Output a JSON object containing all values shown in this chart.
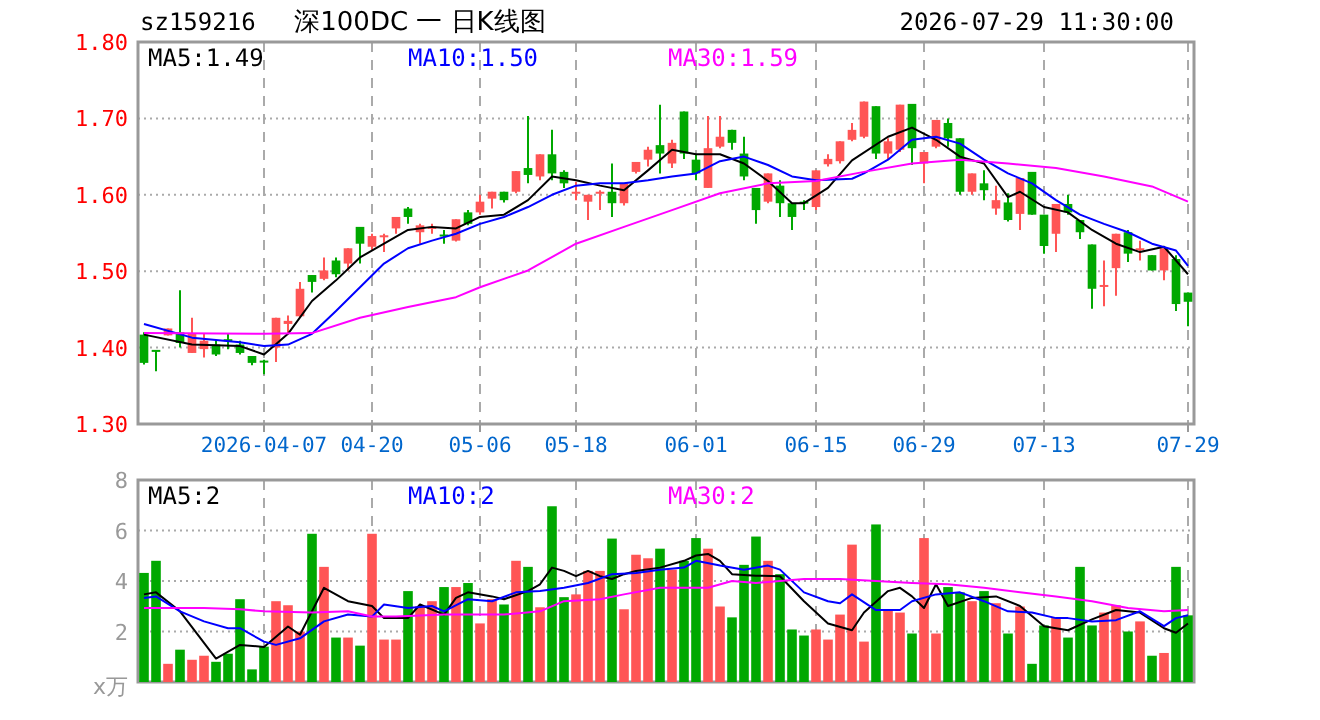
{
  "chart_data": [
    {
      "type": "candlestick",
      "title": "深100DC 一 日K线图",
      "annotations": [
        "sz159216",
        "2026-07-29 11:30:00"
      ],
      "categories": [
        null,
        null,
        null,
        null,
        null,
        null,
        null,
        null,
        null,
        null,
        "2026-04-07",
        null,
        null,
        null,
        null,
        null,
        null,
        null,
        null,
        "04-20",
        null,
        null,
        null,
        null,
        null,
        null,
        null,
        null,
        "05-06",
        null,
        null,
        null,
        null,
        null,
        null,
        null,
        "05-18",
        null,
        null,
        null,
        null,
        null,
        null,
        null,
        null,
        null,
        "06-01",
        null,
        null,
        null,
        null,
        null,
        null,
        null,
        null,
        null,
        "06-15",
        null,
        null,
        null,
        null,
        null,
        null,
        null,
        null,
        "06-29",
        null,
        null,
        null,
        null,
        null,
        null,
        null,
        null,
        null,
        "07-13",
        null,
        null,
        null,
        null,
        null,
        null,
        null,
        null,
        null,
        null,
        null,
        "07-29"
      ],
      "ohlc": [
        [
          1.417,
          1.42,
          1.378,
          1.38
        ],
        [
          1.397,
          1.397,
          1.369,
          1.396
        ],
        [
          1.416,
          1.425,
          1.416,
          1.425
        ],
        [
          1.42,
          1.475,
          1.4,
          1.406
        ],
        [
          1.393,
          1.439,
          1.393,
          1.418
        ],
        [
          1.398,
          1.418,
          1.387,
          1.409
        ],
        [
          1.404,
          1.41,
          1.389,
          1.391
        ],
        [
          1.411,
          1.418,
          1.398,
          1.41
        ],
        [
          1.404,
          1.409,
          1.391,
          1.393
        ],
        [
          1.389,
          1.389,
          1.377,
          1.38
        ],
        [
          1.383,
          1.384,
          1.365,
          1.382
        ],
        [
          1.4,
          1.439,
          1.381,
          1.439
        ],
        [
          1.431,
          1.442,
          1.418,
          1.435
        ],
        [
          1.441,
          1.486,
          1.44,
          1.477
        ],
        [
          1.495,
          1.495,
          1.472,
          1.486
        ],
        [
          1.49,
          1.518,
          1.488,
          1.501
        ],
        [
          1.514,
          1.518,
          1.492,
          1.496
        ],
        [
          1.51,
          1.53,
          1.501,
          1.53
        ],
        [
          1.558,
          1.558,
          1.51,
          1.536
        ],
        [
          1.532,
          1.549,
          1.527,
          1.546
        ],
        [
          1.546,
          1.549,
          1.525,
          1.547
        ],
        [
          1.556,
          1.571,
          1.549,
          1.571
        ],
        [
          1.582,
          1.584,
          1.562,
          1.571
        ],
        [
          1.551,
          1.562,
          1.536,
          1.56
        ],
        [
          1.556,
          1.562,
          1.549,
          1.558
        ],
        [
          1.548,
          1.554,
          1.536,
          1.547
        ],
        [
          1.54,
          1.568,
          1.539,
          1.568
        ],
        [
          1.577,
          1.58,
          1.56,
          1.562
        ],
        [
          1.577,
          1.6,
          1.574,
          1.591
        ],
        [
          1.595,
          1.604,
          1.582,
          1.604
        ],
        [
          1.604,
          1.604,
          1.59,
          1.593
        ],
        [
          1.604,
          1.631,
          1.602,
          1.631
        ],
        [
          1.635,
          1.703,
          1.615,
          1.626
        ],
        [
          1.624,
          1.653,
          1.619,
          1.653
        ],
        [
          1.653,
          1.685,
          1.619,
          1.628
        ],
        [
          1.63,
          1.632,
          1.609,
          1.615
        ],
        [
          1.602,
          1.617,
          1.593,
          1.604
        ],
        [
          1.591,
          1.6,
          1.567,
          1.6
        ],
        [
          1.602,
          1.606,
          1.58,
          1.604
        ],
        [
          1.604,
          1.641,
          1.571,
          1.589
        ],
        [
          1.589,
          1.615,
          1.586,
          1.615
        ],
        [
          1.63,
          1.643,
          1.628,
          1.643
        ],
        [
          1.646,
          1.663,
          1.637,
          1.659
        ],
        [
          1.665,
          1.718,
          1.628,
          1.654
        ],
        [
          1.641,
          1.672,
          1.635,
          1.668
        ],
        [
          1.709,
          1.709,
          1.647,
          1.654
        ],
        [
          1.646,
          1.653,
          1.619,
          1.628
        ],
        [
          1.609,
          1.703,
          1.609,
          1.661
        ],
        [
          1.663,
          1.703,
          1.661,
          1.676
        ],
        [
          1.685,
          1.685,
          1.659,
          1.668
        ],
        [
          1.654,
          1.676,
          1.619,
          1.624
        ],
        [
          1.609,
          1.609,
          1.562,
          1.58
        ],
        [
          1.591,
          1.628,
          1.589,
          1.628
        ],
        [
          1.612,
          1.619,
          1.571,
          1.589
        ],
        [
          1.589,
          1.589,
          1.554,
          1.571
        ],
        [
          1.591,
          1.593,
          1.58,
          1.59
        ],
        [
          1.584,
          1.632,
          1.58,
          1.632
        ],
        [
          1.64,
          1.653,
          1.637,
          1.647
        ],
        [
          1.644,
          1.67,
          1.641,
          1.67
        ],
        [
          1.672,
          1.694,
          1.67,
          1.685
        ],
        [
          1.676,
          1.722,
          1.674,
          1.722
        ],
        [
          1.716,
          1.716,
          1.647,
          1.654
        ],
        [
          1.654,
          1.674,
          1.647,
          1.67
        ],
        [
          1.659,
          1.718,
          1.656,
          1.718
        ],
        [
          1.719,
          1.719,
          1.639,
          1.661
        ],
        [
          1.641,
          1.656,
          1.615,
          1.656
        ],
        [
          1.663,
          1.698,
          1.661,
          1.698
        ],
        [
          1.694,
          1.7,
          1.663,
          1.674
        ],
        [
          1.674,
          1.674,
          1.6,
          1.604
        ],
        [
          1.604,
          1.628,
          1.6,
          1.628
        ],
        [
          1.615,
          1.632,
          1.593,
          1.606
        ],
        [
          1.582,
          1.612,
          1.574,
          1.593
        ],
        [
          1.59,
          1.602,
          1.565,
          1.567
        ],
        [
          1.575,
          1.622,
          1.554,
          1.622
        ],
        [
          1.63,
          1.63,
          1.574,
          1.574
        ],
        [
          1.574,
          1.574,
          1.523,
          1.533
        ],
        [
          1.549,
          1.588,
          1.525,
          1.588
        ],
        [
          1.588,
          1.6,
          1.574,
          1.577
        ],
        [
          1.567,
          1.567,
          1.542,
          1.551
        ],
        [
          1.535,
          1.535,
          1.451,
          1.477
        ],
        [
          1.481,
          1.514,
          1.454,
          1.482
        ],
        [
          1.504,
          1.549,
          1.468,
          1.549
        ],
        [
          1.551,
          1.554,
          1.512,
          1.523
        ],
        [
          1.528,
          1.54,
          1.514,
          1.53
        ],
        [
          1.521,
          1.521,
          1.501,
          1.501
        ],
        [
          1.501,
          1.532,
          1.488,
          1.53
        ],
        [
          1.516,
          1.521,
          1.448,
          1.457
        ],
        [
          1.472,
          1.472,
          1.428,
          1.46
        ]
      ],
      "colors": [
        "#00a800",
        "#00a800",
        "#ff5555",
        "#00a800",
        "#ff5555",
        "#ff5555",
        "#00a800",
        "#00a800",
        "#00a800",
        "#00a800",
        "#00a800",
        "#ff5555",
        "#ff5555",
        "#ff5555",
        "#00a800",
        "#ff5555",
        "#00a800",
        "#ff5555",
        "#00a800",
        "#ff5555",
        "#ff5555",
        "#ff5555",
        "#00a800",
        "#ff5555",
        "#ff5555",
        "#00a800",
        "#ff5555",
        "#00a800",
        "#ff5555",
        "#ff5555",
        "#00a800",
        "#ff5555",
        "#00a800",
        "#ff5555",
        "#00a800",
        "#00a800",
        "#ff5555",
        "#ff5555",
        "#ff5555",
        "#00a800",
        "#ff5555",
        "#ff5555",
        "#ff5555",
        "#00a800",
        "#ff5555",
        "#00a800",
        "#00a800",
        "#ff5555",
        "#ff5555",
        "#00a800",
        "#00a800",
        "#00a800",
        "#ff5555",
        "#00a800",
        "#00a800",
        "#00a800",
        "#ff5555",
        "#ff5555",
        "#ff5555",
        "#ff5555",
        "#ff5555",
        "#00a800",
        "#ff5555",
        "#ff5555",
        "#00a800",
        "#ff5555",
        "#ff5555",
        "#00a800",
        "#00a800",
        "#ff5555",
        "#00a800",
        "#ff5555",
        "#00a800",
        "#ff5555",
        "#00a800",
        "#00a800",
        "#ff5555",
        "#00a800",
        "#00a800",
        "#00a800",
        "#ff5555",
        "#ff5555",
        "#00a800",
        "#ff5555",
        "#00a800",
        "#ff5555",
        "#00a800",
        "#00a800"
      ],
      "series": [
        {
          "type": "line",
          "name": "MA5:1.49",
          "color": "#000000",
          "values": [
            1.417,
            null,
            null,
            null,
            1.404,
            null,
            null,
            null,
            1.402,
            null,
            1.391,
            null,
            1.418,
            null,
            1.461,
            null,
            1.488,
            null,
            1.518,
            null,
            1.536,
            null,
            1.554,
            null,
            1.558,
            null,
            1.556,
            null,
            1.571,
            null,
            1.574,
            null,
            1.593,
            null,
            1.624,
            null,
            1.619,
            null,
            1.612,
            null,
            1.606,
            null,
            1.632,
            null,
            1.659,
            null,
            1.653,
            null,
            1.653,
            null,
            1.641,
            null,
            1.618,
            null,
            1.589,
            1.589,
            null,
            1.609,
            null,
            1.645,
            null,
            null,
            1.676,
            null,
            1.688,
            null,
            1.672,
            null,
            1.65,
            null,
            1.641,
            null,
            1.597,
            1.604,
            null,
            1.584,
            null,
            1.577,
            null,
            1.554,
            null,
            1.536,
            null,
            1.525,
            null,
            1.532,
            null,
            1.496
          ]
        },
        {
          "type": "line",
          "name": "MA10:1.50",
          "color": "#0000ff",
          "values": [
            1.431,
            null,
            null,
            null,
            1.413,
            null,
            null,
            null,
            1.407,
            null,
            1.402,
            null,
            1.404,
            null,
            1.418,
            null,
            1.448,
            null,
            1.479,
            null,
            1.51,
            null,
            1.53,
            null,
            1.54,
            null,
            1.549,
            null,
            1.562,
            null,
            1.571,
            null,
            1.584,
            null,
            1.6,
            null,
            1.612,
            null,
            1.615,
            null,
            1.615,
            null,
            1.619,
            null,
            1.624,
            null,
            1.628,
            null,
            1.644,
            null,
            1.65,
            null,
            1.639,
            null,
            1.624,
            null,
            1.619,
            null,
            null,
            1.621,
            1.628,
            null,
            1.646,
            null,
            1.672,
            null,
            1.676,
            null,
            1.667,
            null,
            1.646,
            null,
            1.628,
            null,
            1.615,
            null,
            1.593,
            null,
            1.574,
            null,
            1.562,
            null,
            1.551,
            null,
            1.536,
            null,
            1.527,
            1.507
          ]
        },
        {
          "type": "line",
          "name": "MA30:1.59",
          "color": "#ff00ff",
          "values": [
            1.419,
            null,
            null,
            null,
            null,
            null,
            null,
            null,
            null,
            null,
            1.418,
            null,
            null,
            null,
            1.419,
            null,
            null,
            null,
            1.439,
            null,
            null,
            null,
            1.453,
            null,
            null,
            null,
            1.466,
            null,
            1.479,
            null,
            null,
            null,
            1.501,
            null,
            null,
            null,
            1.536,
            null,
            null,
            null,
            1.558,
            null,
            null,
            null,
            1.58,
            null,
            null,
            null,
            1.602,
            null,
            null,
            null,
            1.615,
            null,
            null,
            null,
            1.618,
            null,
            null,
            null,
            1.63,
            null,
            null,
            null,
            1.641,
            null,
            null,
            null,
            1.646,
            null,
            null,
            null,
            1.641,
            null,
            null,
            null,
            1.635,
            null,
            null,
            null,
            1.624,
            null,
            null,
            null,
            1.611,
            null,
            null,
            1.591
          ]
        }
      ],
      "ylim": [
        1.3,
        1.8
      ],
      "yticks": [
        {
          "value": 1.3,
          "label": "1.30"
        },
        {
          "value": 1.4,
          "label": "1.40"
        },
        {
          "value": 1.5,
          "label": "1.50"
        },
        {
          "value": 1.6,
          "label": "1.60"
        },
        {
          "value": 1.7,
          "label": "1.70"
        },
        {
          "value": 1.8,
          "label": "1.80"
        }
      ],
      "grid": true,
      "legend": "top left"
    },
    {
      "type": "bar",
      "ylabel": "x万",
      "categories": [
        null,
        null,
        null,
        null,
        null,
        null,
        null,
        null,
        null,
        null,
        null,
        null,
        null,
        null,
        null,
        null,
        null,
        null,
        null,
        null,
        null,
        null,
        null,
        null,
        null,
        null,
        null,
        null,
        null,
        null,
        null,
        null,
        null,
        null,
        null,
        null,
        null,
        null,
        null,
        null,
        null,
        null,
        null,
        null,
        null,
        null,
        null,
        null,
        null,
        null,
        null,
        null,
        null,
        null,
        null,
        null,
        null,
        null,
        null,
        null,
        null,
        null,
        null,
        null,
        null,
        null,
        null,
        null,
        null,
        null,
        null,
        null,
        null,
        null,
        null,
        null,
        null,
        null,
        null,
        null,
        null,
        null,
        null,
        null,
        null,
        null,
        null,
        null
      ],
      "values": [
        4.32,
        4.8,
        0.72,
        1.28,
        0.88,
        1.04,
        0.8,
        1.12,
        3.28,
        0.5,
        1.4,
        3.2,
        3.04,
        2.0,
        5.87,
        4.56,
        1.76,
        1.76,
        1.44,
        5.87,
        1.68,
        1.68,
        3.6,
        3.0,
        3.2,
        3.76,
        3.76,
        3.92,
        2.32,
        3.28,
        3.07,
        4.8,
        4.56,
        2.96,
        6.96,
        3.36,
        3.47,
        4.4,
        4.4,
        5.68,
        2.88,
        5.04,
        4.9,
        5.28,
        4.45,
        4.8,
        5.7,
        5.28,
        2.99,
        2.56,
        4.64,
        5.76,
        4.8,
        4.27,
        2.08,
        1.84,
        2.08,
        1.68,
        2.67,
        5.44,
        1.6,
        6.24,
        2.88,
        2.75,
        1.92,
        5.7,
        1.92,
        3.76,
        3.55,
        3.2,
        3.6,
        3.12,
        1.92,
        2.99,
        0.72,
        2.24,
        2.56,
        1.76,
        4.56,
        2.24,
        2.75,
        3.04,
        2.0,
        2.4,
        1.04,
        1.15,
        4.56,
        2.64
      ],
      "colors": [
        "#00a800",
        "#00a800",
        "#ff5555",
        "#00a800",
        "#ff5555",
        "#ff5555",
        "#00a800",
        "#00a800",
        "#00a800",
        "#00a800",
        "#00a800",
        "#ff5555",
        "#ff5555",
        "#ff5555",
        "#00a800",
        "#ff5555",
        "#00a800",
        "#ff5555",
        "#00a800",
        "#ff5555",
        "#ff5555",
        "#ff5555",
        "#00a800",
        "#ff5555",
        "#ff5555",
        "#00a800",
        "#ff5555",
        "#00a800",
        "#ff5555",
        "#ff5555",
        "#00a800",
        "#ff5555",
        "#00a800",
        "#ff5555",
        "#00a800",
        "#00a800",
        "#ff5555",
        "#ff5555",
        "#ff5555",
        "#00a800",
        "#ff5555",
        "#ff5555",
        "#ff5555",
        "#00a800",
        "#ff5555",
        "#00a800",
        "#00a800",
        "#ff5555",
        "#ff5555",
        "#00a800",
        "#00a800",
        "#00a800",
        "#ff5555",
        "#00a800",
        "#00a800",
        "#00a800",
        "#ff5555",
        "#ff5555",
        "#ff5555",
        "#ff5555",
        "#ff5555",
        "#00a800",
        "#ff5555",
        "#ff5555",
        "#00a800",
        "#ff5555",
        "#ff5555",
        "#00a800",
        "#00a800",
        "#ff5555",
        "#00a800",
        "#ff5555",
        "#00a800",
        "#ff5555",
        "#00a800",
        "#00a800",
        "#ff5555",
        "#00a800",
        "#00a800",
        "#00a800",
        "#ff5555",
        "#ff5555",
        "#00a800",
        "#ff5555",
        "#00a800",
        "#ff5555",
        "#00a800",
        "#00a800"
      ],
      "series": [
        {
          "type": "line",
          "name": "MA5:2",
          "color": "#000000",
          "values": [
            3.47,
            3.55,
            null,
            2.8,
            null,
            null,
            0.93,
            null,
            1.47,
            null,
            1.39,
            null,
            2.2,
            1.87,
            null,
            3.73,
            null,
            3.2,
            null,
            3.01,
            2.53,
            null,
            2.53,
            3.07,
            null,
            2.67,
            3.33,
            3.55,
            null,
            3.39,
            3.28,
            null,
            3.6,
            3.87,
            4.53,
            4.4,
            4.19,
            4.4,
            4.19,
            4.08,
            4.27,
            4.4,
            null,
            4.53,
            null,
            4.8,
            5.01,
            5.07,
            4.8,
            4.27,
            null,
            4.21,
            null,
            4.19,
            null,
            3.2,
            null,
            2.32,
            null,
            2.05,
            2.75,
            null,
            3.6,
            3.73,
            3.39,
            2.93,
            3.87,
            3.01,
            null,
            3.33,
            null,
            3.39,
            null,
            3.01,
            null,
            2.21,
            null,
            2.05,
            null,
            2.48,
            null,
            2.85,
            null,
            2.75,
            null,
            2.13,
            1.95,
            2.32
          ]
        },
        {
          "type": "line",
          "name": "MA10:2",
          "color": "#0000ff",
          "values": [
            3.33,
            3.39,
            null,
            2.8,
            null,
            2.4,
            null,
            2.13,
            2.13,
            null,
            1.6,
            1.47,
            null,
            1.73,
            null,
            2.4,
            null,
            2.67,
            null,
            2.59,
            3.07,
            null,
            2.93,
            null,
            3.01,
            2.8,
            null,
            3.28,
            null,
            3.2,
            null,
            3.55,
            null,
            3.6,
            null,
            3.73,
            null,
            3.92,
            null,
            4.27,
            null,
            4.32,
            null,
            4.45,
            null,
            4.53,
            4.8,
            null,
            4.61,
            null,
            4.45,
            null,
            4.61,
            4.45,
            null,
            3.55,
            null,
            3.2,
            3.12,
            3.47,
            null,
            2.85,
            null,
            2.85,
            3.2,
            null,
            3.47,
            null,
            3.55,
            null,
            3.2,
            null,
            2.8,
            null,
            2.75,
            null,
            2.53,
            2.53,
            null,
            2.4,
            null,
            2.45,
            null,
            2.8,
            null,
            2.21,
            2.53,
            2.64
          ]
        },
        {
          "type": "line",
          "name": "MA30:2",
          "color": "#ff00ff",
          "values": [
            2.93,
            null,
            null,
            null,
            null,
            2.93,
            null,
            null,
            2.88,
            null,
            2.8,
            null,
            null,
            null,
            2.75,
            null,
            null,
            2.8,
            null,
            2.59,
            null,
            2.59,
            null,
            null,
            null,
            2.67,
            null,
            null,
            null,
            null,
            2.67,
            null,
            null,
            2.8,
            null,
            3.2,
            null,
            null,
            3.28,
            null,
            3.47,
            null,
            null,
            3.73,
            null,
            3.73,
            null,
            3.73,
            null,
            4.0,
            null,
            3.92,
            null,
            4.0,
            null,
            4.08,
            null,
            null,
            4.08,
            null,
            null,
            4.0,
            null,
            null,
            3.92,
            null,
            null,
            3.87,
            null,
            null,
            3.73,
            null,
            null,
            3.55,
            null,
            null,
            3.39,
            null,
            null,
            3.2,
            null,
            null,
            2.93,
            null,
            null,
            2.8,
            null,
            2.85
          ]
        }
      ],
      "ylim": [
        0,
        8
      ],
      "yticks": [
        2,
        4,
        6,
        8
      ],
      "grid": true,
      "legend": "top left",
      "tick_labels": "y"
    }
  ]
}
